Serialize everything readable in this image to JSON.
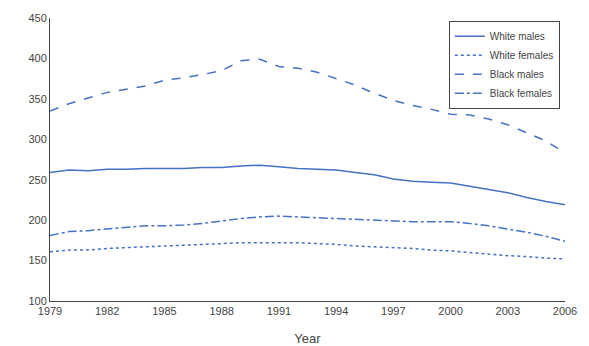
{
  "chart_data": {
    "type": "line",
    "x_label": "Year",
    "x": [
      1979,
      1980,
      1981,
      1982,
      1983,
      1984,
      1985,
      1986,
      1987,
      1988,
      1989,
      1990,
      1991,
      1992,
      1993,
      1994,
      1995,
      1996,
      1997,
      1998,
      1999,
      2000,
      2001,
      2002,
      2003,
      2004,
      2005,
      2006
    ],
    "color": "#4472C4",
    "series": [
      {
        "name": "White males",
        "line_style": "solid",
        "values": [
          259,
          262,
          261,
          263,
          263,
          264,
          264,
          264,
          265,
          265,
          267,
          268,
          266,
          264,
          263,
          262,
          259,
          256,
          251,
          248,
          247,
          246,
          242,
          238,
          234,
          228,
          223,
          219
        ]
      },
      {
        "name": "White females",
        "line_style": "dotted",
        "values": [
          161,
          163,
          163,
          165,
          166,
          167,
          168,
          169,
          170,
          171,
          172,
          172,
          172,
          172,
          171,
          170,
          168,
          167,
          166,
          165,
          163,
          162,
          160,
          158,
          156,
          155,
          153,
          152
        ]
      },
      {
        "name": "Black males",
        "line_style": "dashed",
        "values": [
          335,
          344,
          351,
          358,
          362,
          366,
          373,
          376,
          380,
          385,
          397,
          399,
          390,
          388,
          383,
          375,
          367,
          357,
          348,
          342,
          337,
          331,
          330,
          325,
          318,
          308,
          298,
          283
        ]
      },
      {
        "name": "Black females",
        "line_style": "dashdot",
        "values": [
          181,
          186,
          187,
          189,
          191,
          193,
          193,
          194,
          196,
          199,
          202,
          204,
          205,
          204,
          203,
          202,
          201,
          200,
          199,
          198,
          198,
          198,
          196,
          193,
          189,
          185,
          180,
          174
        ]
      }
    ],
    "xlim": [
      1979,
      2006
    ],
    "xticks": [
      1979,
      1982,
      1985,
      1988,
      1991,
      1994,
      1997,
      2000,
      2003,
      2006
    ],
    "ylim": [
      100,
      450
    ],
    "yticks": [
      100,
      150,
      200,
      250,
      300,
      350,
      400,
      450
    ],
    "grid": false,
    "legend": "upper right"
  }
}
